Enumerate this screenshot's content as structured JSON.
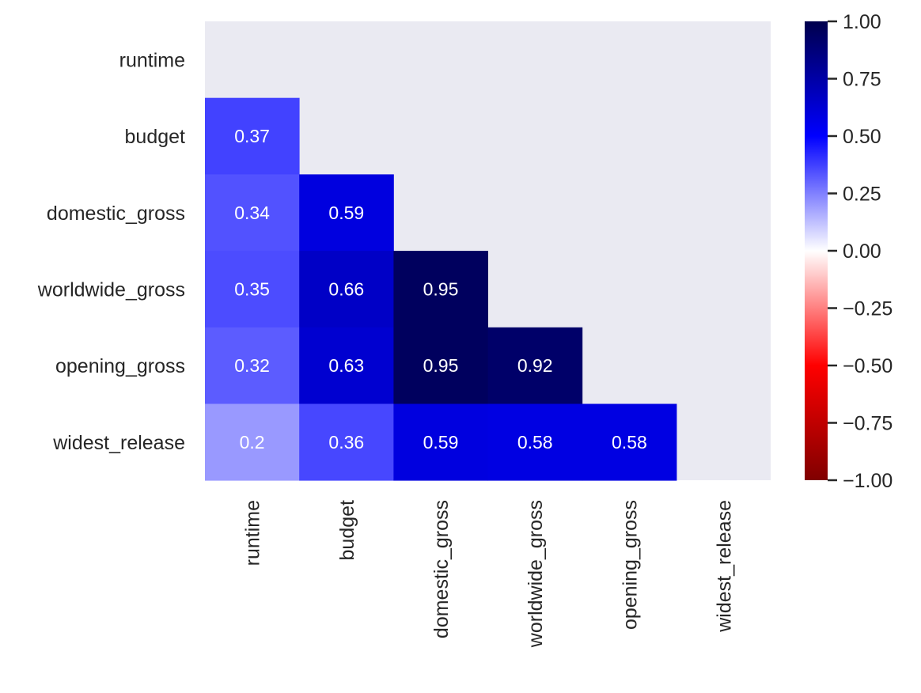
{
  "chart_data": {
    "type": "heatmap",
    "title": "",
    "xlabel": "",
    "ylabel": "",
    "variables": [
      "runtime",
      "budget",
      "domestic_gross",
      "worldwide_gross",
      "opening_gross",
      "widest_release"
    ],
    "mask": "upper-triangle-including-diagonal",
    "matrix": [
      [
        null,
        null,
        null,
        null,
        null,
        null
      ],
      [
        0.37,
        null,
        null,
        null,
        null,
        null
      ],
      [
        0.34,
        0.59,
        null,
        null,
        null,
        null
      ],
      [
        0.35,
        0.66,
        0.95,
        null,
        null,
        null
      ],
      [
        0.32,
        0.63,
        0.95,
        0.92,
        null,
        null
      ],
      [
        0.2,
        0.36,
        0.59,
        0.58,
        0.58,
        null
      ]
    ],
    "annotations": [
      [
        null,
        null,
        null,
        null,
        null,
        null
      ],
      [
        "0.37",
        null,
        null,
        null,
        null,
        null
      ],
      [
        "0.34",
        "0.59",
        null,
        null,
        null,
        null
      ],
      [
        "0.35",
        "0.66",
        "0.95",
        null,
        null,
        null
      ],
      [
        "0.32",
        "0.63",
        "0.95",
        "0.92",
        null,
        null
      ],
      [
        "0.2",
        "0.36",
        "0.59",
        "0.58",
        "0.58",
        null
      ]
    ],
    "colormap": "seismic_r",
    "vmin": -1.0,
    "vmax": 1.0,
    "colorbar_ticks": [
      1.0,
      0.75,
      0.5,
      0.25,
      0.0,
      -0.25,
      -0.5,
      -0.75,
      -1.0
    ],
    "colorbar_tick_labels": [
      "1.00",
      "0.75",
      "0.50",
      "0.25",
      "0.00",
      "−0.25",
      "−0.50",
      "−0.75",
      "−1.00"
    ],
    "colors": {
      "axes_background": "#eaeaf2",
      "text_dark": "#262626",
      "annotation_text": "#ffffff"
    }
  }
}
